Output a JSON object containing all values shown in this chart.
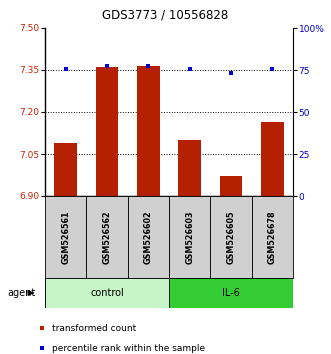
{
  "title": "GDS3773 / 10556828",
  "samples": [
    "GSM526561",
    "GSM526562",
    "GSM526602",
    "GSM526603",
    "GSM526605",
    "GSM526678"
  ],
  "bar_values": [
    7.09,
    7.36,
    7.365,
    7.1,
    6.97,
    7.165
  ],
  "percentile_values": [
    75.5,
    77.5,
    77.5,
    75.5,
    73.0,
    75.5
  ],
  "ylim_left": [
    6.9,
    7.5
  ],
  "ylim_right": [
    0,
    100
  ],
  "yticks_left": [
    6.9,
    7.05,
    7.2,
    7.35,
    7.5
  ],
  "yticks_right": [
    0,
    25,
    50,
    75,
    100
  ],
  "ytick_labels_right": [
    "0",
    "25",
    "50",
    "75",
    "100%"
  ],
  "bar_color": "#b52000",
  "dot_color": "#0000cc",
  "control_color": "#c8f5c8",
  "il6_color": "#33cc33",
  "control_label": "control",
  "il6_label": "IL-6",
  "agent_label": "agent",
  "legend_bar_label": "transformed count",
  "legend_dot_label": "percentile rank within the sample",
  "sample_box_color": "#d0d0d0",
  "gridline_ticks": [
    7.05,
    7.2,
    7.35
  ]
}
